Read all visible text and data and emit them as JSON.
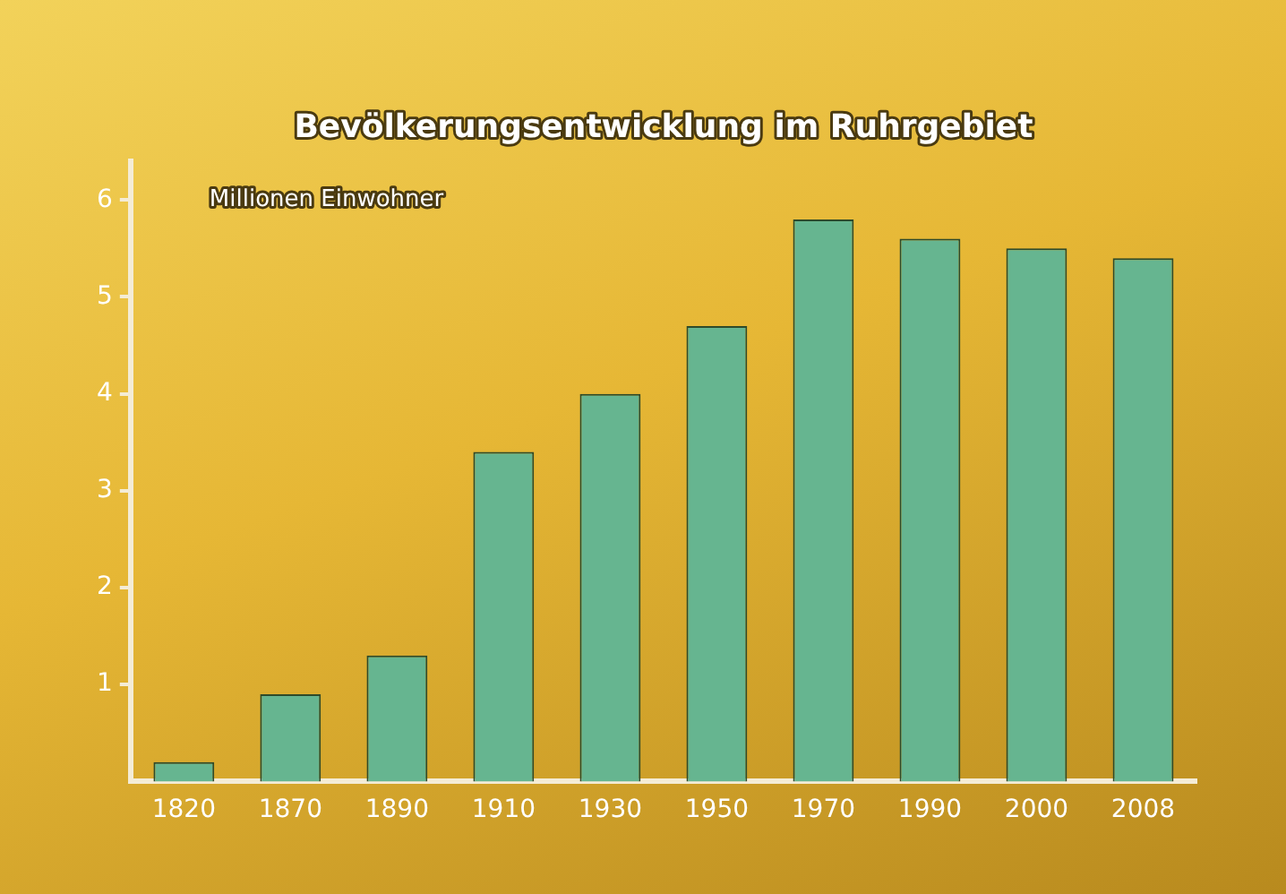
{
  "chart_data": {
    "type": "bar",
    "title": "Bevölkerungsentwicklung im Ruhrgebiet",
    "ylabel": "Millionen Einwohner",
    "categories": [
      "1820",
      "1870",
      "1890",
      "1910",
      "1930",
      "1950",
      "1970",
      "1990",
      "2000",
      "2008"
    ],
    "values": [
      0.2,
      0.9,
      1.3,
      3.4,
      4.0,
      4.7,
      5.8,
      5.6,
      5.5,
      5.4
    ],
    "color": "#66b590",
    "ylim": [
      0,
      6.4
    ],
    "yticks": [
      1,
      2,
      3,
      4,
      5,
      6
    ],
    "grid": false,
    "legend": false
  }
}
